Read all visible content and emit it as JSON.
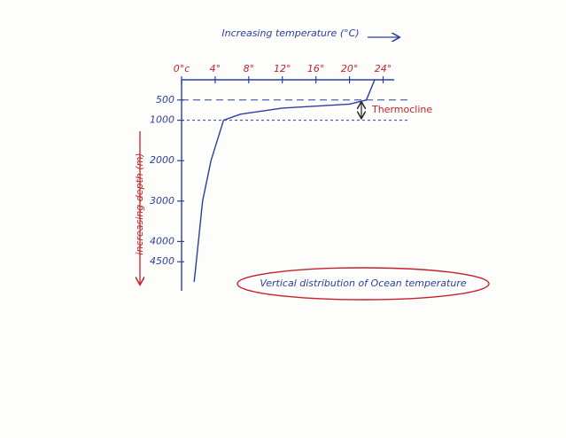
{
  "chart_data": {
    "type": "line",
    "title": "Vertical distribution of Ocean temperature",
    "xlabel": "Increasing temperature (°C)",
    "ylabel": "increasing depth (m)",
    "x": [
      23,
      22,
      20,
      12,
      7,
      5,
      3.5,
      2.5,
      2,
      1.5
    ],
    "values": [
      0,
      500,
      600,
      700,
      850,
      1000,
      2000,
      3000,
      4000,
      5000
    ],
    "color": "#2b3f9e",
    "xlim": [
      0,
      25
    ],
    "ylim": [
      0,
      5000
    ],
    "y_inverted": true,
    "xticks": [
      {
        "value": 0,
        "label": "0°c"
      },
      {
        "value": 4,
        "label": "4°"
      },
      {
        "value": 8,
        "label": "8°"
      },
      {
        "value": 12,
        "label": "12°"
      },
      {
        "value": 16,
        "label": "16°"
      },
      {
        "value": 20,
        "label": "20°"
      },
      {
        "value": 24,
        "label": "24°"
      }
    ],
    "yticks": [
      500,
      1000,
      2000,
      3000,
      4000,
      4500
    ],
    "thermocline": {
      "label": "Thermocline",
      "top": 500,
      "bottom": 1000
    }
  }
}
